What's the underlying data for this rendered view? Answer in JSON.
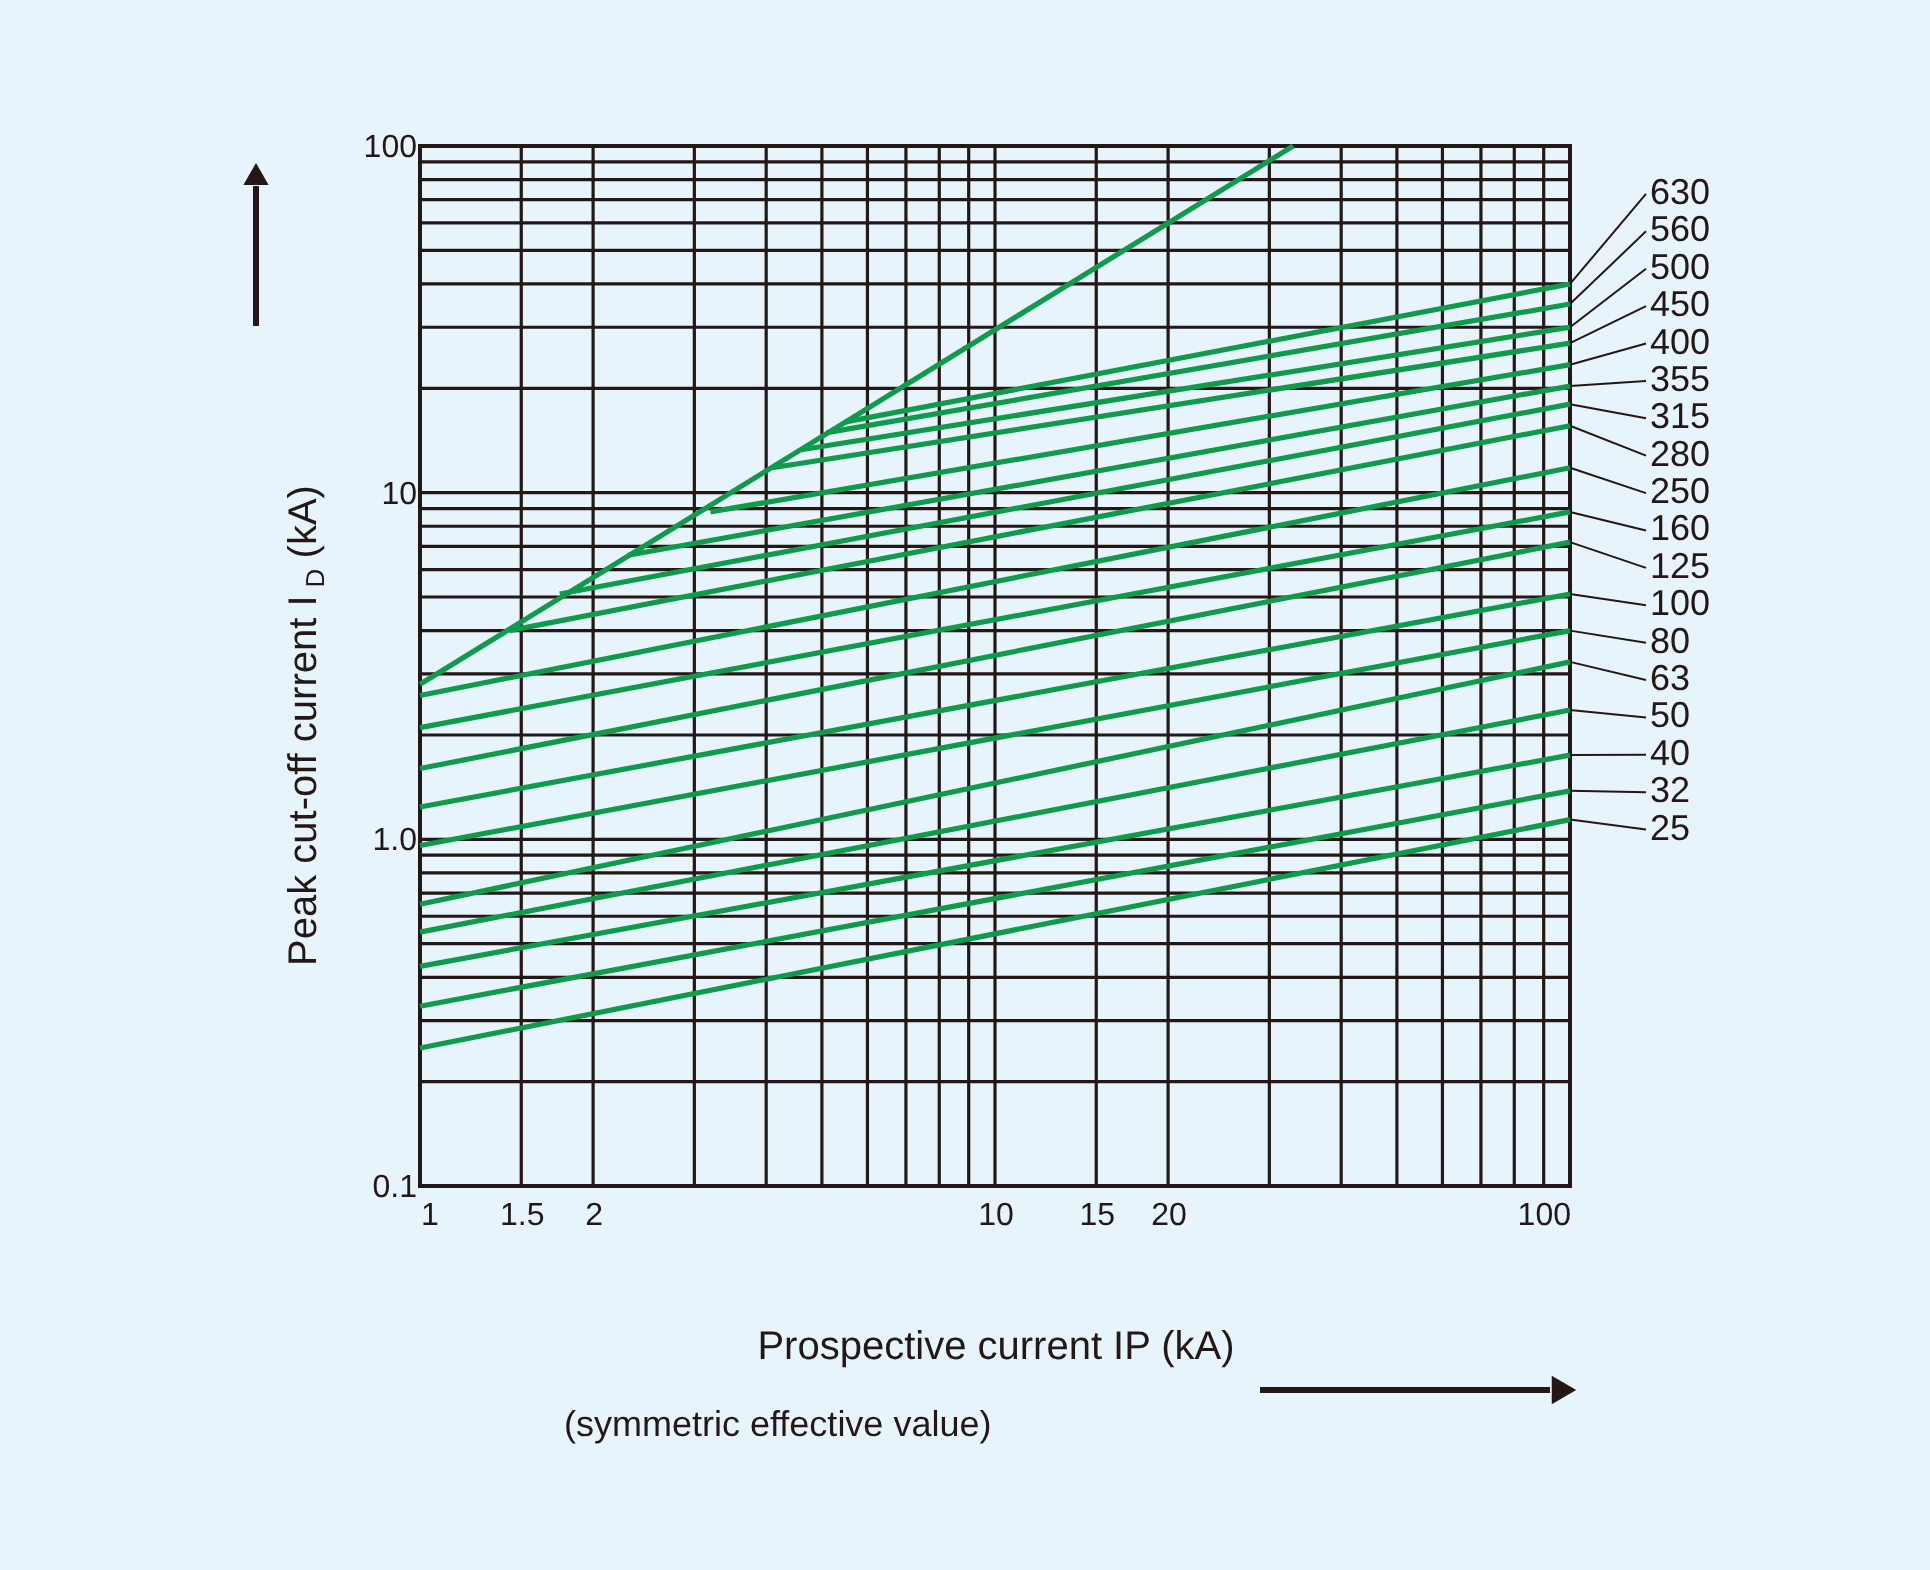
{
  "chart_data": {
    "type": "line",
    "xlabel": "Prospective current IP (kA)",
    "ylabel": "Peak cut-off current I$_{D}$ (kA)",
    "annotations": [
      "(symmetric effective value)"
    ],
    "log": "xy",
    "grid": true,
    "legend": false,
    "marker": "none",
    "line_style": "solid",
    "xlim": [
      1,
      100
    ],
    "ylim": [
      0.1,
      100
    ],
    "xticks": [
      1,
      1.5,
      2,
      {
        "value": 3,
        "label": null
      },
      {
        "value": 4,
        "label": null
      },
      {
        "value": 5,
        "label": null
      },
      {
        "value": 6,
        "label": null
      },
      {
        "value": 7,
        "label": null
      },
      {
        "value": 8,
        "label": null
      },
      {
        "value": 9,
        "label": null
      },
      10,
      15,
      20,
      {
        "value": 30,
        "label": null
      },
      {
        "value": 40,
        "label": null
      },
      {
        "value": 50,
        "label": null
      },
      {
        "value": 60,
        "label": null
      },
      {
        "value": 70,
        "label": null
      },
      {
        "value": 80,
        "label": null
      },
      {
        "value": 90,
        "label": null
      },
      100
    ],
    "yticks": [
      0.1,
      {
        "value": 0.2,
        "label": null
      },
      {
        "value": 0.3,
        "label": null
      },
      {
        "value": 0.4,
        "label": null
      },
      {
        "value": 0.5,
        "label": null
      },
      {
        "value": 0.6,
        "label": null
      },
      {
        "value": 0.7,
        "label": null
      },
      {
        "value": 0.8,
        "label": null
      },
      {
        "value": 0.9,
        "label": null
      },
      {
        "value": 1,
        "label": "1.0"
      },
      {
        "value": 2,
        "label": null
      },
      {
        "value": 3,
        "label": null
      },
      {
        "value": 4,
        "label": null
      },
      {
        "value": 5,
        "label": null
      },
      {
        "value": 6,
        "label": null
      },
      {
        "value": 7,
        "label": null
      },
      {
        "value": 8,
        "label": null
      },
      {
        "value": 9,
        "label": null
      },
      10,
      {
        "value": 20,
        "label": null
      },
      {
        "value": 30,
        "label": null
      },
      {
        "value": 40,
        "label": null
      },
      {
        "value": 50,
        "label": null
      },
      {
        "value": 60,
        "label": null
      },
      {
        "value": 70,
        "label": null
      },
      {
        "value": 80,
        "label": null
      },
      {
        "value": 90,
        "label": null
      },
      100
    ],
    "series": [
      {
        "color": "#109a4c",
        "x": [
          1,
          33
        ],
        "values": [
          2.8,
          100
        ]
      },
      {
        "name": "630",
        "color": "#109a4c",
        "x": [
          5.5,
          100
        ],
        "values": [
          16,
          40
        ]
      },
      {
        "name": "560",
        "color": "#109a4c",
        "x": [
          5.1,
          100
        ],
        "values": [
          14.9,
          35
        ]
      },
      {
        "name": "500",
        "color": "#109a4c",
        "x": [
          4.6,
          100
        ],
        "values": [
          13.3,
          30
        ]
      },
      {
        "name": "450",
        "color": "#109a4c",
        "x": [
          4.1,
          100
        ],
        "values": [
          11.8,
          27
        ]
      },
      {
        "name": "400",
        "color": "#109a4c",
        "x": [
          3.2,
          100
        ],
        "values": [
          8.8,
          23.4
        ]
      },
      {
        "name": "355",
        "color": "#109a4c",
        "x": [
          2.3,
          100
        ],
        "values": [
          6.6,
          20.3
        ]
      },
      {
        "name": "315",
        "color": "#109a4c",
        "x": [
          1.75,
          100
        ],
        "values": [
          5.1,
          18
        ]
      },
      {
        "name": "280",
        "color": "#109a4c",
        "x": [
          1.43,
          100
        ],
        "values": [
          4,
          15.6
        ]
      },
      {
        "name": "250",
        "color": "#109a4c",
        "x": [
          1,
          100
        ],
        "values": [
          2.6,
          11.8
        ]
      },
      {
        "name": "160",
        "color": "#109a4c",
        "x": [
          1,
          100
        ],
        "values": [
          2.1,
          8.8
        ]
      },
      {
        "name": "125",
        "color": "#109a4c",
        "x": [
          1,
          100
        ],
        "values": [
          1.6,
          7.2
        ]
      },
      {
        "name": "100",
        "color": "#109a4c",
        "x": [
          1,
          100
        ],
        "values": [
          1.24,
          5.1
        ]
      },
      {
        "name": "80",
        "color": "#109a4c",
        "x": [
          1,
          100
        ],
        "values": [
          0.96,
          4
        ]
      },
      {
        "name": "63",
        "color": "#109a4c",
        "x": [
          1,
          100
        ],
        "values": [
          0.65,
          3.25
        ]
      },
      {
        "name": "50",
        "color": "#109a4c",
        "x": [
          1,
          100
        ],
        "values": [
          0.54,
          2.36
        ]
      },
      {
        "name": "40",
        "color": "#109a4c",
        "x": [
          1,
          100
        ],
        "values": [
          0.43,
          1.75
        ]
      },
      {
        "name": "32",
        "color": "#109a4c",
        "x": [
          1,
          100
        ],
        "values": [
          0.33,
          1.38
        ]
      },
      {
        "name": "25",
        "color": "#109a4c",
        "x": [
          1,
          100
        ],
        "values": [
          0.25,
          1.14
        ]
      }
    ]
  }
}
